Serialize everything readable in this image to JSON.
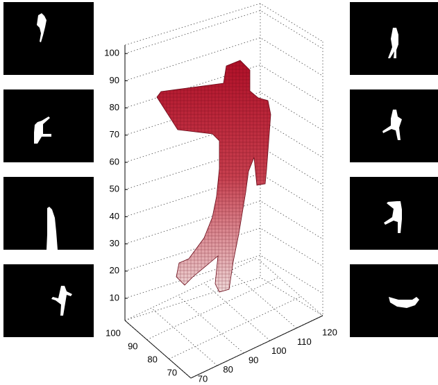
{
  "axes": {
    "z_ticks": [
      10,
      20,
      30,
      40,
      50,
      60,
      70,
      80,
      90,
      100
    ],
    "y_ticks": [
      100,
      90,
      80,
      70
    ],
    "x_ticks": [
      70,
      80,
      90,
      100,
      110,
      120
    ]
  }
}
